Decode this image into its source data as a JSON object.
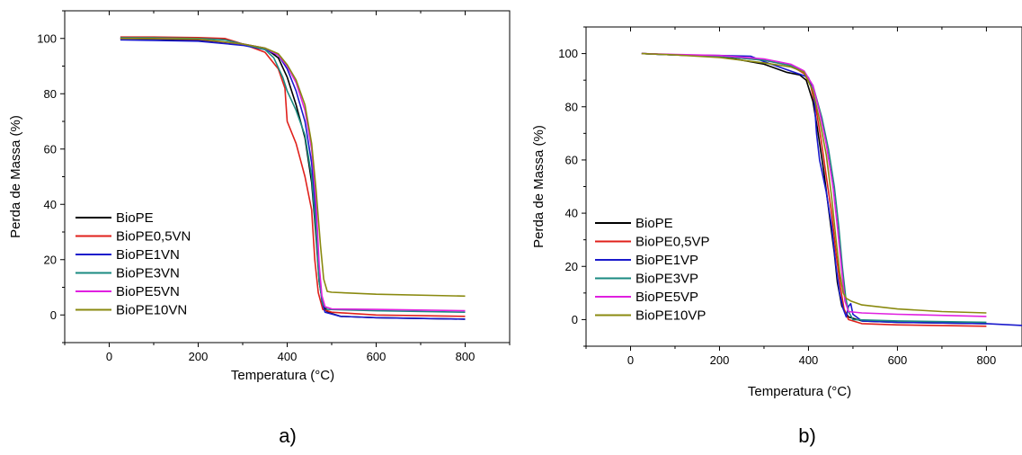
{
  "colors": {
    "BioPE": "#000000",
    "BioPE0,5": "#e0201b",
    "BioPE1": "#1a1acc",
    "BioPE3": "#1a8a80",
    "BioPE5": "#e020e0",
    "BioPE10": "#8a8a10"
  },
  "chart_data": [
    {
      "type": "line",
      "panel_label": "a)",
      "xlabel": "Temperatura (°C)",
      "ylabel": "Perda de Massa (%)",
      "xlim": [
        -100,
        900
      ],
      "ylim": [
        -10,
        110
      ],
      "xticks": [
        0,
        200,
        400,
        600,
        800
      ],
      "yticks": [
        0,
        20,
        40,
        60,
        80,
        100
      ],
      "legend_position": "lower-left",
      "series": [
        {
          "name": "BioPE",
          "color": "#000000",
          "points": [
            [
              25,
              100
            ],
            [
              100,
              99.8
            ],
            [
              200,
              99.4
            ],
            [
              300,
              98
            ],
            [
              350,
              96.5
            ],
            [
              380,
              93
            ],
            [
              400,
              86
            ],
            [
              420,
              76
            ],
            [
              440,
              64
            ],
            [
              455,
              48
            ],
            [
              465,
              28
            ],
            [
              472,
              12
            ],
            [
              480,
              4
            ],
            [
              490,
              1
            ],
            [
              520,
              -0.5
            ],
            [
              600,
              -1
            ],
            [
              800,
              -1.5
            ]
          ]
        },
        {
          "name": "BioPE0,5VN",
          "color": "#e0201b",
          "points": [
            [
              25,
              100.5
            ],
            [
              100,
              100.5
            ],
            [
              200,
              100.3
            ],
            [
              260,
              100
            ],
            [
              300,
              98
            ],
            [
              350,
              95
            ],
            [
              380,
              89
            ],
            [
              395,
              82
            ],
            [
              400,
              70
            ],
            [
              420,
              62
            ],
            [
              440,
              50
            ],
            [
              455,
              38
            ],
            [
              462,
              20
            ],
            [
              470,
              8
            ],
            [
              480,
              2
            ],
            [
              500,
              1
            ],
            [
              600,
              0
            ],
            [
              800,
              -0.5
            ]
          ]
        },
        {
          "name": "BioPE1VN",
          "color": "#1a1acc",
          "points": [
            [
              25,
              99.5
            ],
            [
              100,
              99.3
            ],
            [
              200,
              99
            ],
            [
              300,
              97.5
            ],
            [
              350,
              96
            ],
            [
              380,
              94
            ],
            [
              400,
              89
            ],
            [
              420,
              81
            ],
            [
              440,
              70
            ],
            [
              455,
              55
            ],
            [
              465,
              35
            ],
            [
              472,
              15
            ],
            [
              478,
              5
            ],
            [
              485,
              1
            ],
            [
              520,
              -0.5
            ],
            [
              600,
              -1
            ],
            [
              800,
              -1.5
            ]
          ]
        },
        {
          "name": "BioPE3VN",
          "color": "#1a8a80",
          "points": [
            [
              25,
              100.2
            ],
            [
              100,
              100.2
            ],
            [
              200,
              100
            ],
            [
              260,
              99.5
            ],
            [
              300,
              98
            ],
            [
              350,
              96
            ],
            [
              370,
              93
            ],
            [
              390,
              86
            ],
            [
              400,
              81
            ],
            [
              420,
              74
            ],
            [
              440,
              65
            ],
            [
              455,
              50
            ],
            [
              465,
              30
            ],
            [
              472,
              12
            ],
            [
              480,
              4
            ],
            [
              490,
              2
            ],
            [
              600,
              1.5
            ],
            [
              800,
              1
            ]
          ]
        },
        {
          "name": "BioPE5VN",
          "color": "#e020e0",
          "points": [
            [
              25,
              100
            ],
            [
              100,
              100
            ],
            [
              200,
              99.7
            ],
            [
              300,
              98
            ],
            [
              350,
              96.5
            ],
            [
              380,
              94
            ],
            [
              400,
              90
            ],
            [
              420,
              84
            ],
            [
              440,
              74
            ],
            [
              455,
              60
            ],
            [
              465,
              40
            ],
            [
              472,
              18
            ],
            [
              478,
              7
            ],
            [
              485,
              3
            ],
            [
              500,
              2.2
            ],
            [
              600,
              2
            ],
            [
              800,
              1.5
            ]
          ]
        },
        {
          "name": "BioPE10VN",
          "color": "#8a8a10",
          "points": [
            [
              25,
              100
            ],
            [
              100,
              100
            ],
            [
              200,
              99.8
            ],
            [
              300,
              98
            ],
            [
              350,
              96.5
            ],
            [
              380,
              94.5
            ],
            [
              400,
              90.5
            ],
            [
              420,
              85
            ],
            [
              440,
              76
            ],
            [
              455,
              62
            ],
            [
              465,
              45
            ],
            [
              475,
              25
            ],
            [
              482,
              13
            ],
            [
              490,
              8.5
            ],
            [
              500,
              8.2
            ],
            [
              600,
              7.5
            ],
            [
              800,
              6.8
            ]
          ]
        }
      ]
    },
    {
      "type": "line",
      "panel_label": "b)",
      "xlabel": "Temperatura (°C)",
      "ylabel": "Perda de Massa (%)",
      "xlim": [
        -100,
        880
      ],
      "ylim": [
        -10,
        110
      ],
      "xticks": [
        0,
        200,
        400,
        600,
        800
      ],
      "yticks": [
        0,
        20,
        40,
        60,
        80,
        100
      ],
      "legend_position": "lower-left",
      "series": [
        {
          "name": "BioPE",
          "color": "#000000",
          "points": [
            [
              25,
              100
            ],
            [
              100,
              99.5
            ],
            [
              200,
              99
            ],
            [
              300,
              96
            ],
            [
              350,
              93
            ],
            [
              380,
              92
            ],
            [
              395,
              90
            ],
            [
              410,
              82
            ],
            [
              420,
              72
            ],
            [
              435,
              55
            ],
            [
              448,
              38
            ],
            [
              458,
              25
            ],
            [
              465,
              14
            ],
            [
              475,
              5
            ],
            [
              490,
              1
            ],
            [
              520,
              -0.5
            ],
            [
              600,
              -1
            ],
            [
              800,
              -1.5
            ]
          ]
        },
        {
          "name": "BioPE0,5VP",
          "color": "#e0201b",
          "points": [
            [
              25,
              100
            ],
            [
              100,
              99.5
            ],
            [
              200,
              99
            ],
            [
              300,
              97.5
            ],
            [
              360,
              95.5
            ],
            [
              390,
              92.5
            ],
            [
              405,
              88
            ],
            [
              418,
              78
            ],
            [
              428,
              68
            ],
            [
              440,
              54
            ],
            [
              452,
              40
            ],
            [
              462,
              25
            ],
            [
              472,
              12
            ],
            [
              480,
              4
            ],
            [
              490,
              0
            ],
            [
              520,
              -1.5
            ],
            [
              600,
              -2
            ],
            [
              800,
              -2.5
            ]
          ]
        },
        {
          "name": "BioPE1VP",
          "color": "#1a1acc",
          "points": [
            [
              25,
              100
            ],
            [
              100,
              99.5
            ],
            [
              200,
              99.3
            ],
            [
              270,
              99
            ],
            [
              300,
              97
            ],
            [
              350,
              94
            ],
            [
              385,
              92
            ],
            [
              400,
              91
            ],
            [
              412,
              85
            ],
            [
              418,
              70
            ],
            [
              425,
              60
            ],
            [
              440,
              48
            ],
            [
              452,
              35
            ],
            [
              462,
              20
            ],
            [
              470,
              10
            ],
            [
              478,
              4
            ],
            [
              485,
              1
            ],
            [
              490,
              5
            ],
            [
              495,
              6
            ],
            [
              500,
              2
            ],
            [
              520,
              -0.5
            ],
            [
              600,
              -1
            ],
            [
              800,
              -1.5
            ],
            [
              880,
              -2.2
            ]
          ]
        },
        {
          "name": "BioPE3VP",
          "color": "#1a8a80",
          "points": [
            [
              25,
              100
            ],
            [
              100,
              99.5
            ],
            [
              200,
              99
            ],
            [
              300,
              97.5
            ],
            [
              360,
              95.5
            ],
            [
              390,
              93
            ],
            [
              410,
              88
            ],
            [
              430,
              76
            ],
            [
              445,
              64
            ],
            [
              458,
              50
            ],
            [
              468,
              35
            ],
            [
              476,
              20
            ],
            [
              484,
              8
            ],
            [
              490,
              3
            ],
            [
              500,
              0
            ],
            [
              600,
              -0.5
            ],
            [
              800,
              -1
            ]
          ]
        },
        {
          "name": "BioPE5VP",
          "color": "#e020e0",
          "points": [
            [
              25,
              100
            ],
            [
              100,
              99.7
            ],
            [
              200,
              99.3
            ],
            [
              300,
              98
            ],
            [
              360,
              96
            ],
            [
              390,
              93.5
            ],
            [
              410,
              88
            ],
            [
              425,
              78
            ],
            [
              440,
              66
            ],
            [
              455,
              50
            ],
            [
              465,
              35
            ],
            [
              475,
              18
            ],
            [
              482,
              7
            ],
            [
              490,
              3
            ],
            [
              520,
              2.5
            ],
            [
              600,
              2
            ],
            [
              800,
              1.2
            ]
          ]
        },
        {
          "name": "BioPE10VP",
          "color": "#8a8a10",
          "points": [
            [
              25,
              100
            ],
            [
              100,
              99.5
            ],
            [
              200,
              98.5
            ],
            [
              300,
              96.5
            ],
            [
              360,
              95
            ],
            [
              390,
              93
            ],
            [
              410,
              86
            ],
            [
              425,
              75
            ],
            [
              440,
              62
            ],
            [
              452,
              46
            ],
            [
              462,
              30
            ],
            [
              470,
              18
            ],
            [
              478,
              10
            ],
            [
              485,
              8
            ],
            [
              495,
              7
            ],
            [
              520,
              5.5
            ],
            [
              600,
              4
            ],
            [
              700,
              3
            ],
            [
              800,
              2.5
            ]
          ]
        }
      ]
    }
  ]
}
